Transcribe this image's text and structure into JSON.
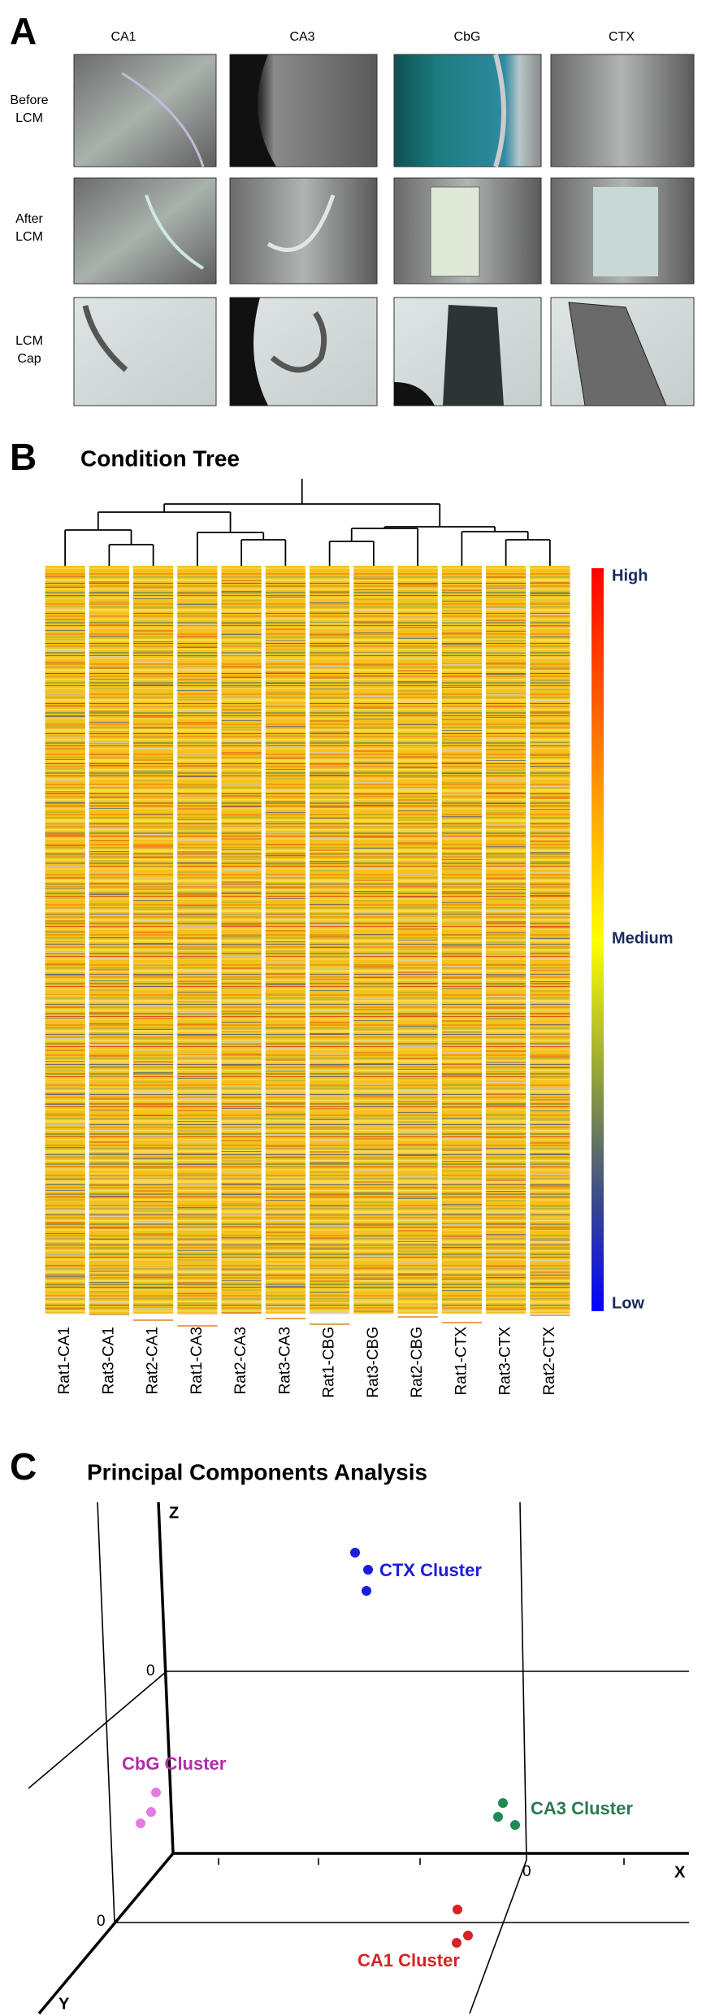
{
  "panel_a": {
    "letter": "A",
    "columns": [
      "CA1",
      "CA3",
      "CbG",
      "CTX"
    ],
    "rows": [
      [
        "Before",
        "LCM"
      ],
      [
        "After",
        "LCM"
      ],
      [
        "LCM",
        "Cap"
      ]
    ]
  },
  "panel_b": {
    "letter": "B",
    "title": "Condition Tree",
    "scale_labels": [
      "High",
      "Medium",
      "Low"
    ],
    "samples": [
      "Rat1-CA1",
      "Rat3-CA1",
      "Rat2-CA1",
      "Rat1-CA3",
      "Rat2-CA3",
      "Rat3-CA3",
      "Rat1-CBG",
      "Rat3-CBG",
      "Rat2-CBG",
      "Rat1-CTX",
      "Rat3-CTX",
      "Rat2-CTX"
    ]
  },
  "panel_c": {
    "letter": "C",
    "title": "Principal Components Analysis",
    "axes": {
      "z": "Z",
      "x": "X",
      "y": "Y"
    },
    "zero_labels": [
      "0",
      "0",
      "0"
    ],
    "clusters": [
      {
        "label": "CTX Cluster",
        "color": "#1c1ce0",
        "point_color": "#1c1ce0"
      },
      {
        "label": "CbG Cluster",
        "color": "#b02ea8",
        "point_color": "#e47ae4"
      },
      {
        "label": "CA3 Cluster",
        "color": "#2a7a50",
        "point_color": "#1f8a55"
      },
      {
        "label": "CA1 Cluster",
        "color": "#d42424",
        "point_color": "#d42424"
      }
    ]
  }
}
